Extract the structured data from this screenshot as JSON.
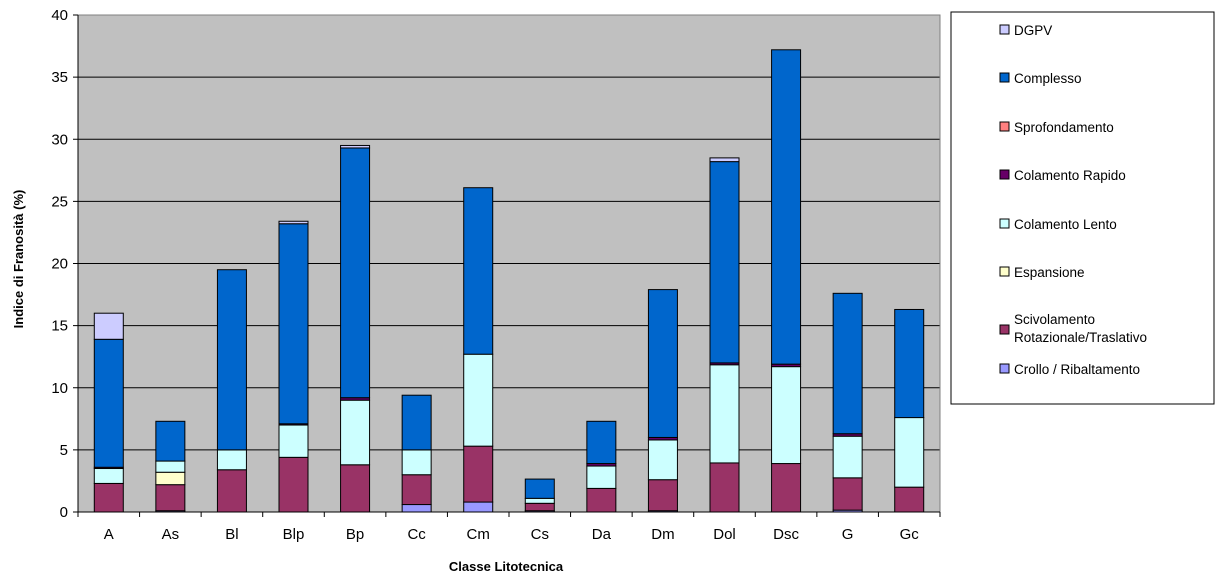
{
  "chart_data": {
    "type": "bar",
    "stacked": true,
    "xlabel": "Classe Litotecnica",
    "ylabel": "Indice di Franosità (%)",
    "ylim": [
      0,
      40
    ],
    "yticks": [
      0,
      5,
      10,
      15,
      20,
      25,
      30,
      35,
      40
    ],
    "grid": true,
    "legend_position": "right",
    "plot_background": "#c0c0c0",
    "categories": [
      "A",
      "As",
      "Bl",
      "Blp",
      "Bp",
      "Cc",
      "Cm",
      "Cs",
      "Da",
      "Dm",
      "Dol",
      "Dsc",
      "G",
      "Gc"
    ],
    "series": [
      {
        "name": "Crollo / Ribaltamento",
        "color": "#9999ff",
        "values": [
          0,
          0.1,
          0,
          0,
          0,
          0.6,
          0.8,
          0.1,
          0,
          0.1,
          0,
          0,
          0.15,
          0
        ]
      },
      {
        "name": "Scivolamento Rotazionale/Traslativo",
        "color": "#993366",
        "values": [
          2.3,
          2.1,
          3.4,
          4.4,
          3.8,
          2.4,
          4.5,
          0.6,
          1.9,
          2.5,
          3.95,
          3.9,
          2.6,
          2.0
        ]
      },
      {
        "name": "Espansione",
        "color": "#ffffcc",
        "values": [
          0,
          1.0,
          0,
          0,
          0,
          0,
          0,
          0,
          0,
          0,
          0,
          0,
          0,
          0
        ]
      },
      {
        "name": "Colamento Lento",
        "color": "#ccffff",
        "values": [
          1.2,
          0.9,
          1.6,
          2.6,
          5.2,
          2.0,
          7.4,
          0.4,
          1.8,
          3.2,
          7.9,
          7.8,
          3.35,
          5.6
        ]
      },
      {
        "name": "Colamento Rapido",
        "color": "#660066",
        "values": [
          0.1,
          0,
          0,
          0.1,
          0.2,
          0,
          0,
          0,
          0.2,
          0.2,
          0.15,
          0.2,
          0.2,
          0
        ]
      },
      {
        "name": "Sprofondamento",
        "color": "#ff8080",
        "values": [
          0,
          0,
          0,
          0,
          0,
          0,
          0,
          0,
          0,
          0,
          0,
          0,
          0,
          0
        ]
      },
      {
        "name": "Complesso",
        "color": "#0066cc",
        "values": [
          10.3,
          3.2,
          14.5,
          16.1,
          20.1,
          4.4,
          13.4,
          1.55,
          3.4,
          11.9,
          16.2,
          25.3,
          11.3,
          8.7
        ]
      },
      {
        "name": "DGPV",
        "color": "#ccccff",
        "values": [
          2.1,
          0,
          0,
          0.2,
          0.2,
          0,
          0,
          0,
          0,
          0,
          0.3,
          0,
          0,
          0
        ]
      }
    ],
    "legend_order": [
      "DGPV",
      "Complesso",
      "Sprofondamento",
      "Colamento Rapido",
      "Colamento Lento",
      "Espansione",
      "Scivolamento Rotazionale/Traslativo",
      "Crollo / Ribaltamento"
    ]
  }
}
